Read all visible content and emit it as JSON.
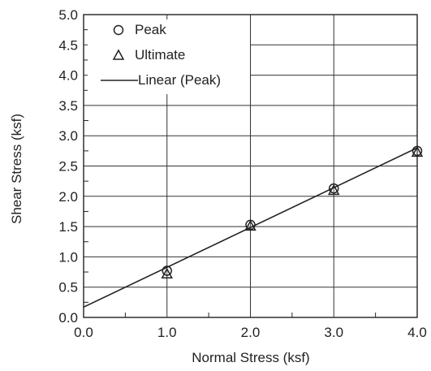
{
  "chart_data": {
    "type": "scatter",
    "title": "",
    "xlabel": "Normal Stress (ksf)",
    "ylabel": "Shear Stress (ksf)",
    "xlim": [
      0.0,
      4.0
    ],
    "ylim": [
      0.0,
      5.0
    ],
    "x_ticks": [
      "0.0",
      "1.0",
      "2.0",
      "3.0",
      "4.0"
    ],
    "y_ticks": [
      "0.0",
      "0.5",
      "1.0",
      "1.5",
      "2.0",
      "2.5",
      "3.0",
      "3.5",
      "4.0",
      "4.5",
      "5.0"
    ],
    "grid": true,
    "legend_position": "top-left",
    "series": [
      {
        "name": "Peak",
        "marker": "circle",
        "x": [
          1.0,
          2.0,
          3.0,
          4.0
        ],
        "y": [
          0.77,
          1.53,
          2.13,
          2.75
        ]
      },
      {
        "name": "Ultimate",
        "marker": "triangle",
        "x": [
          1.0,
          2.0,
          3.0,
          4.0
        ],
        "y": [
          0.72,
          1.51,
          2.1,
          2.73
        ]
      },
      {
        "name": "Linear (Peak)",
        "marker": "line",
        "x": [
          0.0,
          4.0
        ],
        "y": [
          0.17,
          2.8
        ]
      }
    ],
    "colors": {
      "ink": "#222222",
      "grid": "#333333",
      "background": "#ffffff"
    }
  }
}
